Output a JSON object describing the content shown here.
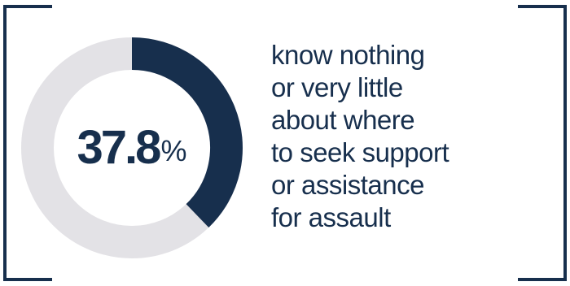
{
  "colors": {
    "accent": "#172f4d",
    "track": "#e3e2e6",
    "background": "#ffffff"
  },
  "chart_data": {
    "type": "pie",
    "variant": "donut",
    "values": [
      37.8,
      62.2
    ],
    "value_label": "37.8",
    "value_unit": "%",
    "title": ""
  },
  "caption": {
    "lines": [
      "know nothing",
      "or very little",
      "about where",
      "to seek support",
      "or assistance",
      "for assault"
    ]
  }
}
